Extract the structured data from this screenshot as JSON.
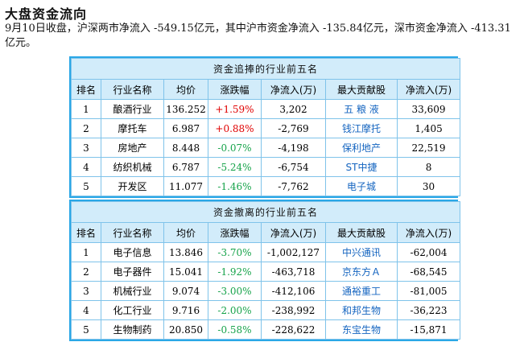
{
  "page": {
    "title": "大盘资金流向",
    "summary": "9月10日收盘，沪深两市净流入 -549.15亿元，其中沪市资金净流入 -135.84亿元，深市资金净流入 -413.31亿元。"
  },
  "columns": [
    "排名",
    "行业名称",
    "均价",
    "涨跌幅",
    "净流入(万)",
    "最大贡献股",
    "净流入(万)"
  ],
  "colors": {
    "border": "#2aa7e6",
    "header_bg": "#d2ecfa",
    "up": "#e00000",
    "down": "#16a34a",
    "stock_link": "#1565c0"
  },
  "inflow": {
    "caption": "资金追捧的行业前五名",
    "rows": [
      {
        "rank": "1",
        "industry": "酿酒行业",
        "price": "136.252",
        "change": "+1.59%",
        "net": "3,202",
        "stock": "五 粮 液",
        "stock_net": "33,609"
      },
      {
        "rank": "2",
        "industry": "摩托车",
        "price": "6.987",
        "change": "+0.88%",
        "net": "-2,769",
        "stock": "钱江摩托",
        "stock_net": "1,405"
      },
      {
        "rank": "3",
        "industry": "房地产",
        "price": "8.448",
        "change": "-0.07%",
        "net": "-4,198",
        "stock": "保利地产",
        "stock_net": "22,519"
      },
      {
        "rank": "4",
        "industry": "纺织机械",
        "price": "6.787",
        "change": "-5.24%",
        "net": "-6,754",
        "stock": "ST中捷",
        "stock_net": "8"
      },
      {
        "rank": "5",
        "industry": "开发区",
        "price": "11.077",
        "change": "-1.46%",
        "net": "-7,762",
        "stock": "电子城",
        "stock_net": "30"
      }
    ]
  },
  "outflow": {
    "caption": "资金撤离的行业前五名",
    "rows": [
      {
        "rank": "1",
        "industry": "电子信息",
        "price": "13.846",
        "change": "-3.70%",
        "net": "-1,002,127",
        "stock": "中兴通讯",
        "stock_net": "-62,004"
      },
      {
        "rank": "2",
        "industry": "电子器件",
        "price": "15.041",
        "change": "-1.92%",
        "net": "-463,718",
        "stock": "京东方Ａ",
        "stock_net": "-68,545"
      },
      {
        "rank": "3",
        "industry": "机械行业",
        "price": "9.074",
        "change": "-3.00%",
        "net": "-412,106",
        "stock": "通裕重工",
        "stock_net": "-81,005"
      },
      {
        "rank": "4",
        "industry": "化工行业",
        "price": "9.716",
        "change": "-2.00%",
        "net": "-238,992",
        "stock": "和邦生物",
        "stock_net": "-36,223"
      },
      {
        "rank": "5",
        "industry": "生物制药",
        "price": "20.850",
        "change": "-0.58%",
        "net": "-228,622",
        "stock": "东宝生物",
        "stock_net": "-15,871"
      }
    ]
  }
}
